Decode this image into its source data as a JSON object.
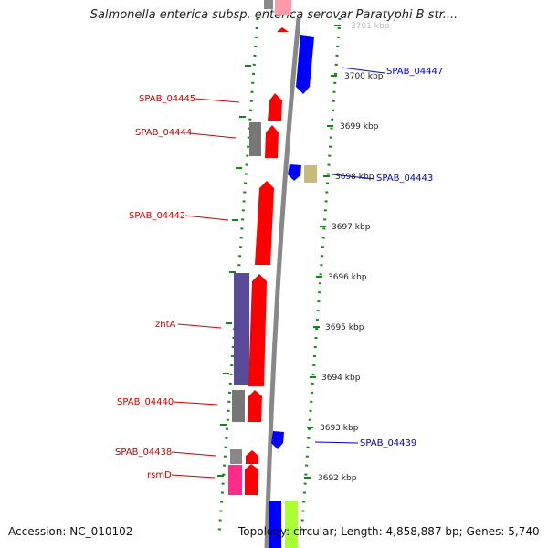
{
  "title": "Salmonella enterica subsp. enterica serovar Paratyphi B str....",
  "footer": {
    "accession": "Accession: NC_010102",
    "topology": "Topology: circular; Length: 4,858,887 bp; Genes: 5,740"
  },
  "ticks": [
    {
      "label": "3701 kbp",
      "faded": true
    },
    {
      "label": "3700 kbp"
    },
    {
      "label": "3699 kbp"
    },
    {
      "label": "3698 kbp"
    },
    {
      "label": "3697 kbp"
    },
    {
      "label": "3696 kbp"
    },
    {
      "label": "3695 kbp"
    },
    {
      "label": "3694 kbp"
    },
    {
      "label": "3693 kbp"
    },
    {
      "label": "3692 kbp"
    }
  ],
  "gene_labels": {
    "left": [
      "SPAB_04445",
      "SPAB_04444",
      "SPAB_04442",
      "zntA",
      "SPAB_04440",
      "SPAB_04438",
      "rsmD"
    ],
    "right": [
      "SPAB_04447",
      "SPAB_04443",
      "SPAB_04439"
    ]
  },
  "colors": {
    "cds": "#ff0000",
    "cds_reverse": "#0000ff",
    "label_left": "#cc0000",
    "label_right": "#0000cc",
    "gray_feature": "#777777",
    "purple_feature": "#5a4a9a",
    "pink_feature": "#ff2a8a",
    "tan_feature": "#c9b97a",
    "green_feature": "#aaff33",
    "backbone": "#888888",
    "tick_marks": "#118811"
  }
}
